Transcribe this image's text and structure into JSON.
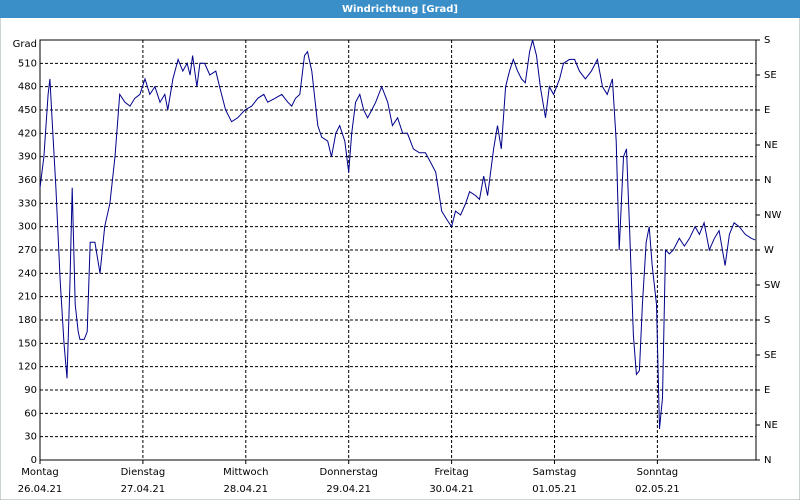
{
  "chart_data": {
    "type": "line",
    "title": "Windrichtung [Grad]",
    "ylabel": "Grad",
    "color": "#00008b",
    "grid": true,
    "xlim": [
      0,
      167
    ],
    "xticks": [
      {
        "value": 0,
        "label": "Montag",
        "date": "26.04.21"
      },
      {
        "value": 24,
        "label": "Dienstag",
        "date": "27.04.21"
      },
      {
        "value": 48,
        "label": "Mittwoch",
        "date": "28.04.21"
      },
      {
        "value": 72,
        "label": "Donnerstag",
        "date": "29.04.21"
      },
      {
        "value": 96,
        "label": "Freitag",
        "date": "30.04.21"
      },
      {
        "value": 120,
        "label": "Samstag",
        "date": "01.05.21"
      },
      {
        "value": 144,
        "label": "Sonntag",
        "date": "02.05.21"
      }
    ],
    "ylim": [
      0,
      540
    ],
    "yticks": [
      0,
      30,
      60,
      90,
      120,
      150,
      180,
      210,
      240,
      270,
      300,
      330,
      360,
      390,
      420,
      450,
      480,
      510
    ],
    "y2lim": [
      0,
      540
    ],
    "y2ticks": [
      {
        "value": 0,
        "label": "N"
      },
      {
        "value": 45,
        "label": "NE"
      },
      {
        "value": 90,
        "label": "E"
      },
      {
        "value": 135,
        "label": "SE"
      },
      {
        "value": 180,
        "label": "S"
      },
      {
        "value": 225,
        "label": "SW"
      },
      {
        "value": 270,
        "label": "W"
      },
      {
        "value": 315,
        "label": "NW"
      },
      {
        "value": 360,
        "label": "N"
      },
      {
        "value": 405,
        "label": "NE"
      },
      {
        "value": 450,
        "label": "E"
      },
      {
        "value": 495,
        "label": "SE"
      },
      {
        "value": 540,
        "label": "S"
      }
    ],
    "x": [
      0,
      0.9,
      1.9,
      2.3,
      2.8,
      3.7,
      4.7,
      5.6,
      6.3,
      7.0,
      7.5,
      8.2,
      8.9,
      9.3,
      10.3,
      11.0,
      11.7,
      12.8,
      14.0,
      15.1,
      16.3,
      17.5,
      18.6,
      19.8,
      21.0,
      22.1,
      23.3,
      24.5,
      25.6,
      26.8,
      28.0,
      29.1,
      29.8,
      31.0,
      32.2,
      33.3,
      34.3,
      35.0,
      35.6,
      36.6,
      37.3,
      38.4,
      39.6,
      41.0,
      41.9,
      43.3,
      44.7,
      46.1,
      47.8,
      49.4,
      50.8,
      52.2,
      53.1,
      54.8,
      56.4,
      57.8,
      58.7,
      59.6,
      60.6,
      61.7,
      62.4,
      63.4,
      64.8,
      65.7,
      67.1,
      68.0,
      69.0,
      69.9,
      71.1,
      72.0,
      72.7,
      73.6,
      74.6,
      75.5,
      76.4,
      77.4,
      78.3,
      79.7,
      81.1,
      82.2,
      83.4,
      84.6,
      85.7,
      87.1,
      88.5,
      89.9,
      90.9,
      92.3,
      93.7,
      94.8,
      96.0,
      96.9,
      98.1,
      99.3,
      100.2,
      101.6,
      102.5,
      103.5,
      104.4,
      105.8,
      106.7,
      107.6,
      108.6,
      109.5,
      110.4,
      111.4,
      112.3,
      113.2,
      114.2,
      114.9,
      115.8,
      116.7,
      117.9,
      118.8,
      119.8,
      121.2,
      122.1,
      123.5,
      124.7,
      125.8,
      127.2,
      128.6,
      130.0,
      131.2,
      132.3,
      133.5,
      134.4,
      135.1,
      136.1,
      136.8,
      137.5,
      138.4,
      139.1,
      139.8,
      140.5,
      141.4,
      142.1,
      142.8,
      143.8,
      144.5,
      145.2,
      145.9,
      146.8,
      147.7,
      149.1,
      150.3,
      151.5,
      152.8,
      153.8,
      154.9,
      156.1,
      157.3,
      158.4,
      159.8,
      160.8,
      161.9,
      163.1,
      164.5,
      165.9,
      166.8
    ],
    "values": [
      350,
      390,
      470,
      490,
      440,
      350,
      230,
      150,
      105,
      230,
      350,
      200,
      165,
      155,
      155,
      165,
      280,
      280,
      240,
      300,
      330,
      390,
      470,
      460,
      455,
      465,
      470,
      490,
      470,
      480,
      460,
      470,
      450,
      490,
      515,
      500,
      510,
      495,
      520,
      480,
      510,
      510,
      495,
      500,
      480,
      450,
      435,
      440,
      450,
      455,
      465,
      470,
      460,
      465,
      470,
      460,
      455,
      465,
      470,
      520,
      525,
      500,
      430,
      415,
      410,
      390,
      420,
      430,
      410,
      370,
      420,
      460,
      470,
      450,
      440,
      450,
      460,
      480,
      460,
      430,
      440,
      420,
      420,
      400,
      395,
      395,
      385,
      370,
      320,
      310,
      300,
      320,
      315,
      330,
      345,
      340,
      335,
      365,
      340,
      400,
      430,
      400,
      480,
      500,
      515,
      500,
      490,
      485,
      525,
      540,
      520,
      480,
      440,
      480,
      470,
      490,
      510,
      515,
      515,
      500,
      490,
      500,
      515,
      480,
      470,
      490,
      410,
      270,
      390,
      400,
      300,
      160,
      110,
      115,
      200,
      280,
      300,
      250,
      200,
      40,
      80,
      270,
      265,
      270,
      285,
      275,
      285,
      300,
      290,
      305,
      270,
      285,
      295,
      250,
      290,
      305,
      300,
      290,
      285,
      283
    ]
  }
}
